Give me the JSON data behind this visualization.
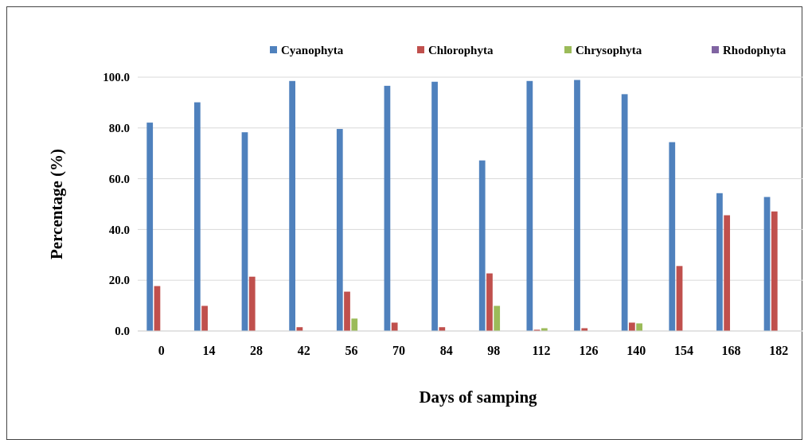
{
  "chart_data": {
    "type": "bar",
    "xlabel": "Days of samping",
    "ylabel": "Percentage (%)",
    "categories": [
      "0",
      "14",
      "28",
      "42",
      "56",
      "70",
      "84",
      "98",
      "112",
      "126",
      "140",
      "154",
      "168",
      "182"
    ],
    "series": [
      {
        "name": "Cyanophyta",
        "color": "#4f81bd",
        "values": [
          82.1,
          90.1,
          78.3,
          98.5,
          79.6,
          96.6,
          98.2,
          67.2,
          98.5,
          98.9,
          93.3,
          74.4,
          54.3,
          52.8
        ]
      },
      {
        "name": "Chlorophyta",
        "color": "#c0504d",
        "values": [
          17.7,
          9.9,
          21.4,
          1.5,
          15.5,
          3.3,
          1.5,
          22.7,
          0.5,
          1.1,
          3.3,
          25.6,
          45.6,
          47.1
        ]
      },
      {
        "name": "Chrysophyta",
        "color": "#9bbb59",
        "values": [
          0,
          0,
          0,
          0,
          4.9,
          0,
          0,
          9.9,
          1.1,
          0,
          3.0,
          0,
          0,
          0
        ]
      },
      {
        "name": "Rhodophyta",
        "color": "#8064a2",
        "values": [
          0,
          0,
          0,
          0,
          0,
          0,
          0,
          0,
          0,
          0,
          0,
          0,
          0,
          0
        ]
      }
    ],
    "ylim": [
      0,
      100
    ],
    "yticks": [
      {
        "value": 0,
        "label": "0.0"
      },
      {
        "value": 20,
        "label": "20.0"
      },
      {
        "value": 40,
        "label": "40.0"
      },
      {
        "value": 60,
        "label": "60.0"
      },
      {
        "value": 80,
        "label": "80.0"
      },
      {
        "value": 100,
        "label": "100.0"
      }
    ],
    "grid": "y",
    "legend": "top"
  }
}
